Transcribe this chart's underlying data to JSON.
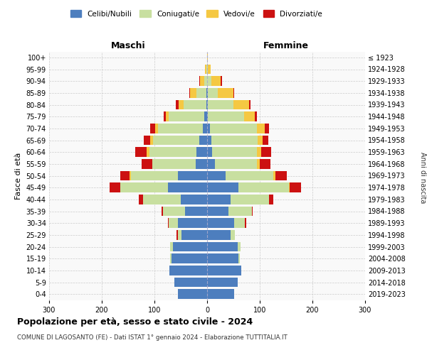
{
  "age_groups": [
    "0-4",
    "5-9",
    "10-14",
    "15-19",
    "20-24",
    "25-29",
    "30-34",
    "35-39",
    "40-44",
    "45-49",
    "50-54",
    "55-59",
    "60-64",
    "65-69",
    "70-74",
    "75-79",
    "80-84",
    "85-89",
    "90-94",
    "95-99",
    "100+"
  ],
  "birth_years": [
    "2019-2023",
    "2014-2018",
    "2009-2013",
    "2004-2008",
    "1999-2003",
    "1994-1998",
    "1989-1993",
    "1984-1988",
    "1979-1983",
    "1974-1978",
    "1969-1973",
    "1964-1968",
    "1959-1963",
    "1954-1958",
    "1949-1953",
    "1944-1948",
    "1939-1943",
    "1934-1938",
    "1929-1933",
    "1924-1928",
    "≤ 1923"
  ],
  "colors": {
    "celibe": "#4d7ebe",
    "coniugato": "#c8dfa0",
    "vedovo": "#f5c842",
    "divorziato": "#cc1111"
  },
  "maschi": {
    "celibe": [
      55,
      62,
      72,
      68,
      65,
      48,
      55,
      42,
      50,
      75,
      55,
      22,
      20,
      15,
      8,
      5,
      2,
      2,
      0,
      0,
      0
    ],
    "coniugato": [
      0,
      0,
      0,
      2,
      5,
      8,
      18,
      42,
      72,
      90,
      90,
      82,
      90,
      88,
      85,
      68,
      42,
      18,
      5,
      2,
      0
    ],
    "vedovo": [
      0,
      0,
      0,
      0,
      0,
      0,
      0,
      0,
      0,
      0,
      2,
      0,
      5,
      5,
      5,
      5,
      10,
      12,
      8,
      2,
      0
    ],
    "divorziato": [
      0,
      0,
      0,
      0,
      0,
      2,
      2,
      2,
      8,
      20,
      18,
      20,
      22,
      12,
      10,
      5,
      5,
      2,
      2,
      0,
      0
    ]
  },
  "femmine": {
    "nubile": [
      52,
      58,
      65,
      60,
      58,
      45,
      52,
      40,
      45,
      60,
      35,
      15,
      10,
      8,
      5,
      2,
      2,
      2,
      0,
      0,
      0
    ],
    "coniugata": [
      0,
      0,
      0,
      2,
      5,
      8,
      20,
      45,
      72,
      95,
      90,
      80,
      85,
      88,
      90,
      68,
      48,
      18,
      8,
      2,
      0
    ],
    "vedova": [
      0,
      0,
      0,
      0,
      0,
      0,
      0,
      0,
      0,
      2,
      5,
      5,
      8,
      10,
      15,
      20,
      30,
      30,
      18,
      5,
      2
    ],
    "divorziata": [
      0,
      0,
      0,
      0,
      0,
      0,
      2,
      2,
      8,
      22,
      22,
      20,
      18,
      10,
      8,
      5,
      2,
      2,
      2,
      0,
      0
    ]
  },
  "xlim": 300,
  "title": "Popolazione per età, sesso e stato civile - 2024",
  "subtitle": "COMUNE DI LAGOSANTO (FE) - Dati ISTAT 1° gennaio 2024 - Elaborazione TUTTITALIA.IT",
  "ylabel_left": "Fasce di età",
  "ylabel_right": "Anni di nascita",
  "xlabel_left": "Maschi",
  "xlabel_right": "Femmine",
  "xticks": [
    -300,
    -200,
    -100,
    0,
    100,
    200,
    300
  ],
  "bg_color": "#f9f9f9"
}
